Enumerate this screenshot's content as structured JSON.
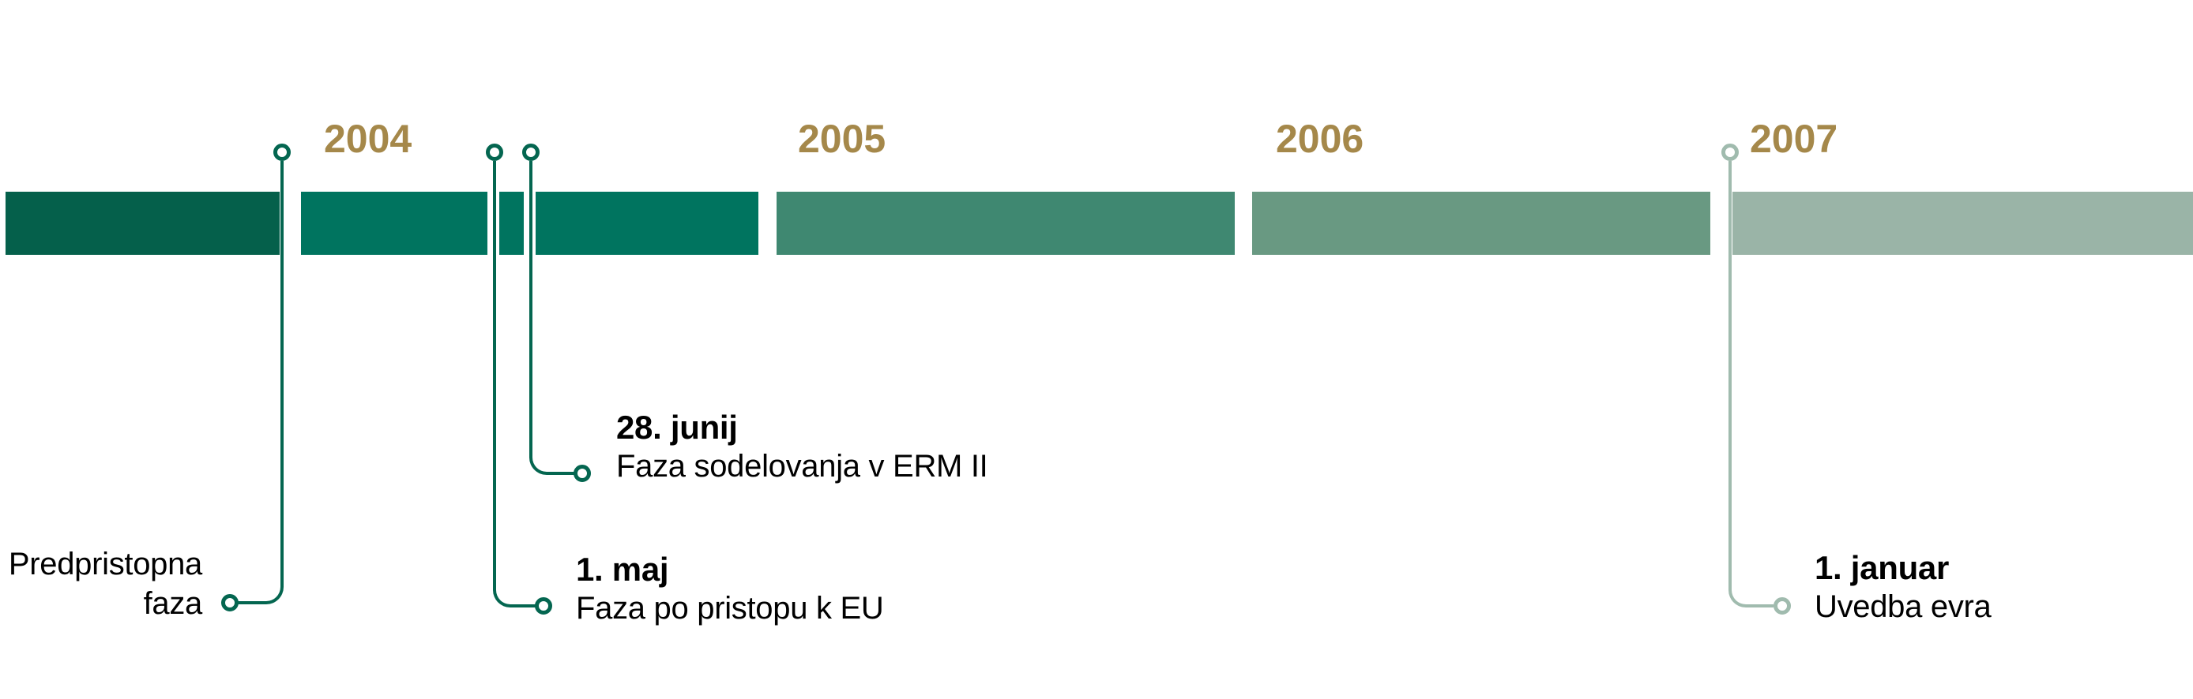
{
  "timeline": {
    "year_label_color": "#A5884A",
    "text_color": "#000000",
    "years": [
      {
        "label": "2004"
      },
      {
        "label": "2005"
      },
      {
        "label": "2006"
      },
      {
        "label": "2007"
      }
    ],
    "segments": [
      {
        "id": "predpristopna",
        "color": "#05604B"
      },
      {
        "id": "2004",
        "color": "#00745F"
      },
      {
        "id": "2005",
        "color": "#3F8871"
      },
      {
        "id": "2006",
        "color": "#699982"
      },
      {
        "id": "2007",
        "color": "#9AB4A7"
      }
    ],
    "events": [
      {
        "label_line1": "Predpristopna",
        "label_line2": "faza",
        "connector_color": "#046650"
      },
      {
        "date": "1. maj",
        "description": "Faza po pristopu k EU",
        "connector_color": "#046650"
      },
      {
        "date": "28. junij",
        "description": "Faza sodelovanja v ERM II",
        "connector_color": "#046650"
      },
      {
        "date": "1. januar",
        "description": "Uvedba evra",
        "connector_color": "#A0BBAE"
      }
    ]
  }
}
